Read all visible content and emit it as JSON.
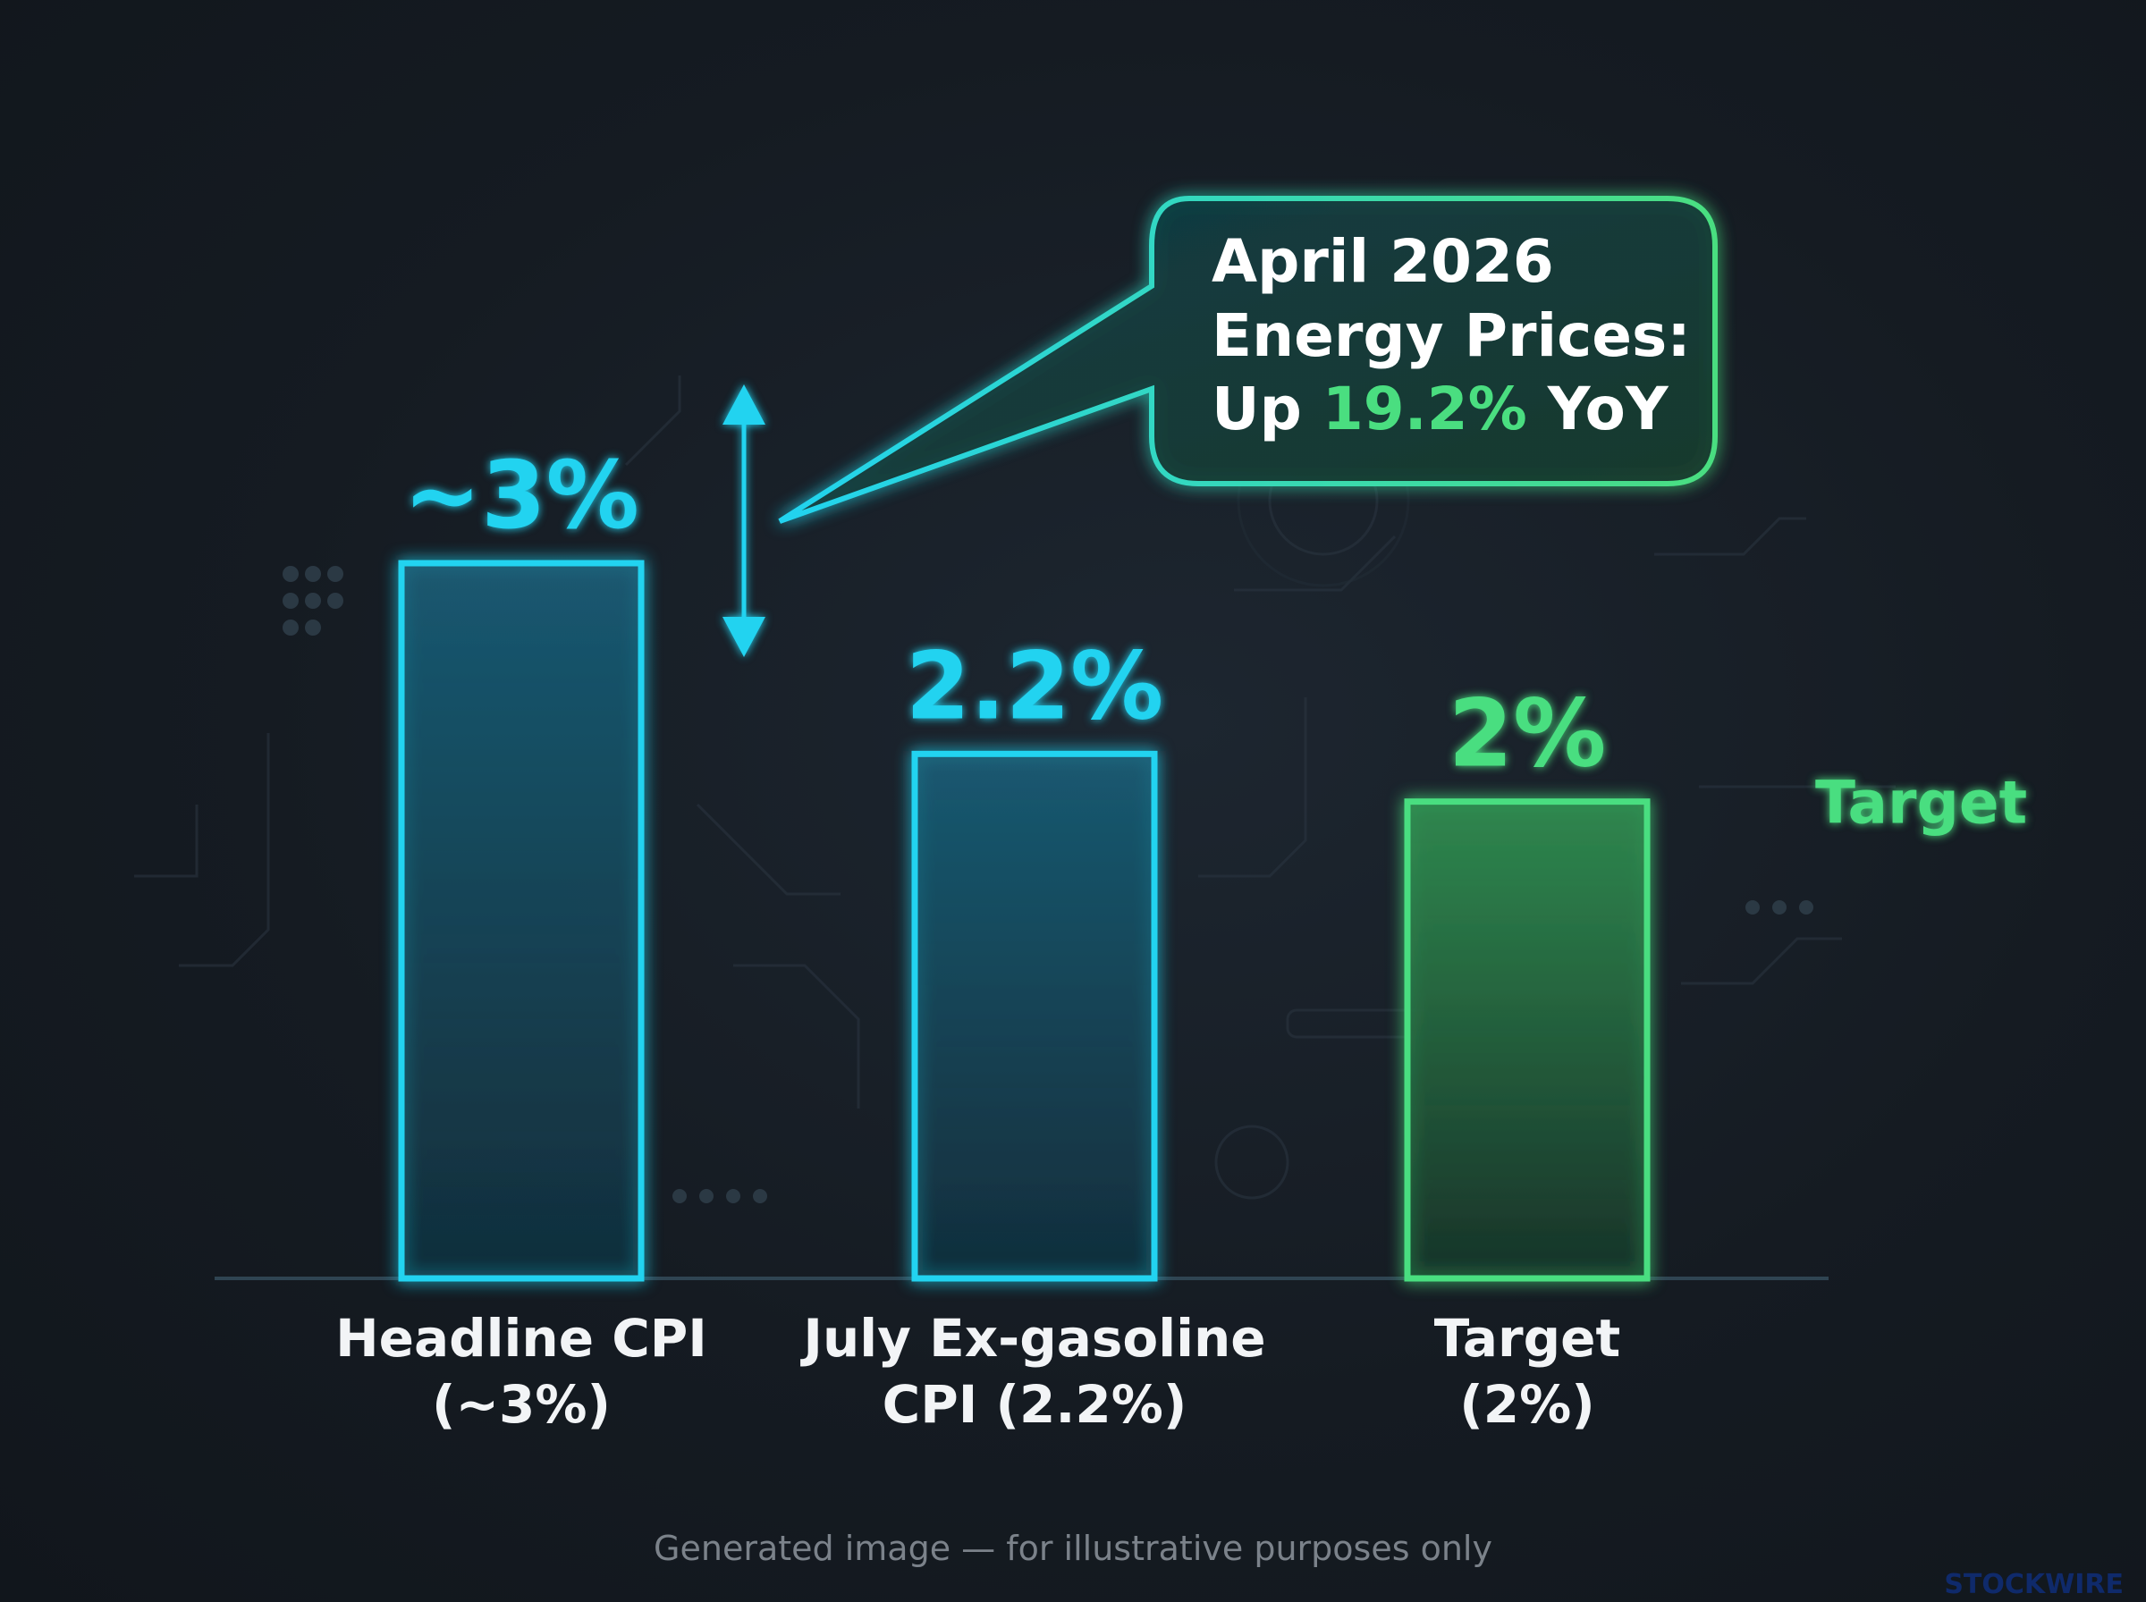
{
  "chart_data": {
    "type": "bar",
    "categories": [
      "Headline CPI (~3%)",
      "July Ex-gasoline CPI (2.2%)",
      "Target (2%)"
    ],
    "category_lines": [
      [
        "Headline CPI",
        "(~3%)"
      ],
      [
        "July Ex-gasoline",
        "CPI (2.2%)"
      ],
      [
        "Target",
        "(2%)"
      ]
    ],
    "values": [
      3.0,
      2.2,
      2.0
    ],
    "value_labels": [
      "~3%",
      "2.2%",
      "2%"
    ],
    "bar_colors": [
      "#22d3f0",
      "#22d3f0",
      "#4ade80"
    ],
    "ylim": [
      0,
      3.6
    ],
    "grid": false,
    "reference_line": {
      "value": 2.0,
      "label": "Target",
      "color": "#4ade80"
    },
    "annotation": {
      "line1": "April 2026",
      "line2": "Energy Prices:",
      "line3_prefix": "Up ",
      "line3_highlight": "19.2%",
      "line3_suffix": " YoY",
      "highlight_color": "#4ade80"
    }
  },
  "footer": {
    "note": "Generated image — for illustrative purposes only"
  },
  "watermark": {
    "text": "STOCKWIRE"
  },
  "colors": {
    "cyan": "#22d3f0",
    "green": "#4ade80",
    "background": "#151b22"
  }
}
